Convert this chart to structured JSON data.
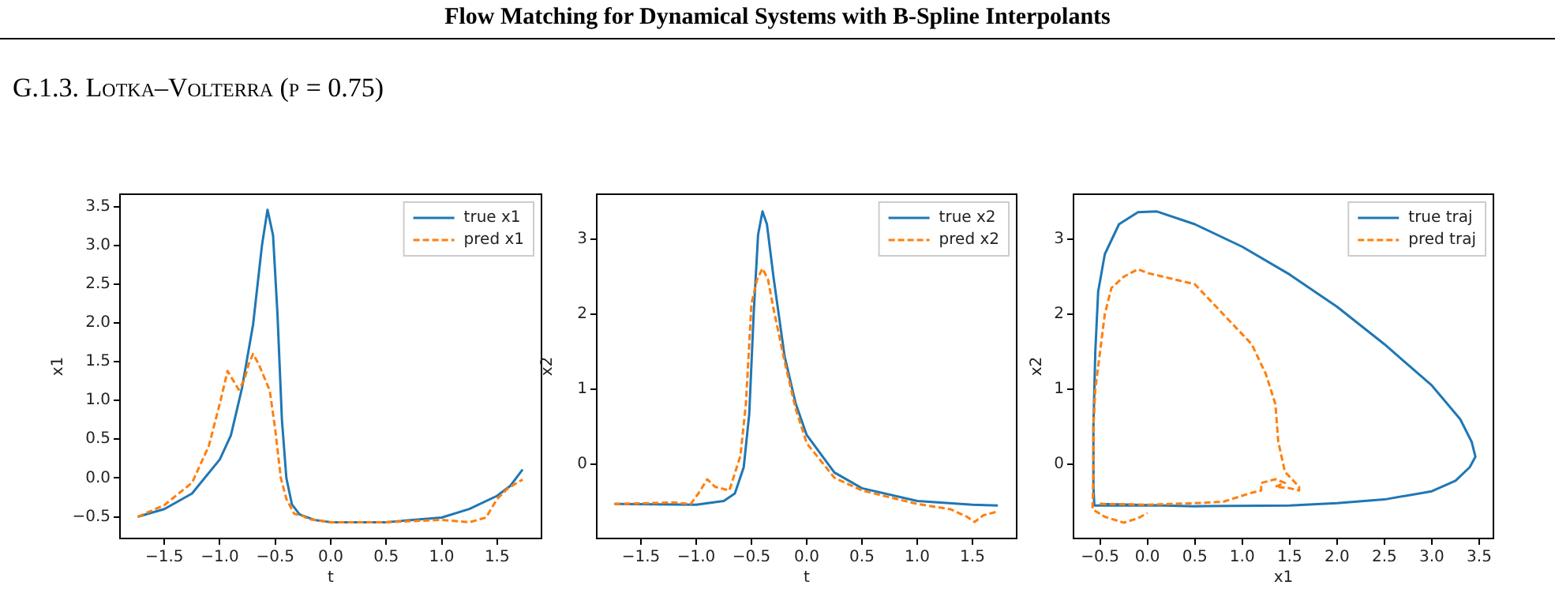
{
  "chart_data": [
    {
      "type": "line",
      "annotations": [
        "Flow Matching for Dynamical Systems with B-Spline Interpolants",
        "G.1.3. Lotka–Volterra (p = 0.75)"
      ],
      "xlabel": "t",
      "ylabel": "x1",
      "legend": "top right",
      "grid": false,
      "marker": "none",
      "xlim": [
        -1.9,
        1.9
      ],
      "ylim": [
        -0.78,
        3.66
      ],
      "xticks": [
        {
          "value": -1.5,
          "label": "−1.5"
        },
        {
          "value": -1.0,
          "label": "−1.0"
        },
        {
          "value": -0.5,
          "label": "−0.5"
        },
        {
          "value": 0,
          "label": "0.0"
        },
        {
          "value": 0.5,
          "label": "0.5"
        },
        {
          "value": 1.0,
          "label": "1.0"
        },
        {
          "value": 1.5,
          "label": "1.5"
        }
      ],
      "yticks": [
        {
          "value": -0.5,
          "label": "−0.5"
        },
        {
          "value": 0,
          "label": "0.0"
        },
        {
          "value": 0.5,
          "label": "0.5"
        },
        {
          "value": 1.0,
          "label": "1.0"
        },
        {
          "value": 1.5,
          "label": "1.5"
        },
        {
          "value": 2.0,
          "label": "2.0"
        },
        {
          "value": 2.5,
          "label": "2.5"
        },
        {
          "value": 3.0,
          "label": "3.0"
        },
        {
          "value": 3.5,
          "label": "3.5"
        }
      ],
      "series": [
        {
          "name": "true x1",
          "color": "#1f77b4",
          "line_style": "solid",
          "x": [
            -1.74,
            -1.5,
            -1.25,
            -1.0,
            -0.9,
            -0.8,
            -0.7,
            -0.62,
            -0.57,
            -0.52,
            -0.48,
            -0.44,
            -0.4,
            -0.35,
            -0.28,
            -0.15,
            0.0,
            0.5,
            1.0,
            1.25,
            1.5,
            1.62,
            1.73
          ],
          "values": [
            -0.5,
            -0.4,
            -0.2,
            0.24,
            0.55,
            1.16,
            1.98,
            3.0,
            3.46,
            3.13,
            2.11,
            0.75,
            0.0,
            -0.34,
            -0.47,
            -0.54,
            -0.57,
            -0.57,
            -0.51,
            -0.4,
            -0.23,
            -0.1,
            0.11
          ]
        },
        {
          "name": "pred x1",
          "color": "#ff7f0e",
          "line_style": "dashed",
          "x": [
            -1.74,
            -1.5,
            -1.25,
            -1.1,
            -1.0,
            -0.93,
            -0.88,
            -0.83,
            -0.78,
            -0.74,
            -0.7,
            -0.65,
            -0.6,
            -0.55,
            -0.5,
            -0.45,
            -0.4,
            -0.33,
            -0.25,
            -0.2,
            0.0,
            0.5,
            1.0,
            1.25,
            1.4,
            1.5,
            1.6,
            1.73
          ],
          "values": [
            -0.5,
            -0.35,
            -0.06,
            0.41,
            0.96,
            1.38,
            1.26,
            1.14,
            1.26,
            1.47,
            1.6,
            1.47,
            1.3,
            1.13,
            0.62,
            0.0,
            -0.27,
            -0.46,
            -0.49,
            -0.53,
            -0.57,
            -0.57,
            -0.54,
            -0.57,
            -0.51,
            -0.27,
            -0.13,
            -0.02
          ]
        }
      ]
    },
    {
      "type": "line",
      "xlabel": "t",
      "ylabel": "x2",
      "legend": "top right",
      "grid": false,
      "marker": "none",
      "xlim": [
        -1.9,
        1.9
      ],
      "ylim": [
        -0.99,
        3.6
      ],
      "xticks": [
        {
          "value": -1.5,
          "label": "−1.5"
        },
        {
          "value": -1.0,
          "label": "−1.0"
        },
        {
          "value": -0.5,
          "label": "−0.5"
        },
        {
          "value": 0,
          "label": "0.0"
        },
        {
          "value": 0.5,
          "label": "0.5"
        },
        {
          "value": 1.0,
          "label": "1.0"
        },
        {
          "value": 1.5,
          "label": "1.5"
        }
      ],
      "yticks": [
        0,
        1,
        2,
        3
      ],
      "series": [
        {
          "name": "true x2",
          "color": "#1f77b4",
          "line_style": "solid",
          "x": [
            -1.74,
            -1.0,
            -0.75,
            -0.65,
            -0.57,
            -0.52,
            -0.48,
            -0.44,
            -0.4,
            -0.36,
            -0.3,
            -0.2,
            -0.1,
            0.0,
            0.25,
            0.5,
            1.0,
            1.5,
            1.73
          ],
          "values": [
            -0.53,
            -0.54,
            -0.49,
            -0.39,
            -0.04,
            0.67,
            2.0,
            3.06,
            3.37,
            3.2,
            2.49,
            1.44,
            0.81,
            0.39,
            -0.11,
            -0.32,
            -0.49,
            -0.54,
            -0.55
          ]
        },
        {
          "name": "pred x2",
          "color": "#ff7f0e",
          "line_style": "dashed",
          "x": [
            -1.74,
            -1.2,
            -1.05,
            -0.98,
            -0.9,
            -0.83,
            -0.7,
            -0.6,
            -0.55,
            -0.5,
            -0.45,
            -0.4,
            -0.35,
            -0.3,
            -0.2,
            -0.1,
            0.0,
            0.25,
            0.5,
            1.0,
            1.3,
            1.45,
            1.52,
            1.6,
            1.73
          ],
          "values": [
            -0.53,
            -0.51,
            -0.53,
            -0.39,
            -0.2,
            -0.3,
            -0.35,
            0.11,
            0.81,
            2.14,
            2.46,
            2.61,
            2.46,
            2.07,
            1.37,
            0.74,
            0.28,
            -0.18,
            -0.35,
            -0.53,
            -0.6,
            -0.7,
            -0.77,
            -0.68,
            -0.63
          ]
        }
      ]
    },
    {
      "type": "line",
      "xlabel": "x1",
      "ylabel": "x2",
      "legend": "top right",
      "grid": false,
      "marker": "none",
      "xlim": [
        -0.78,
        3.65
      ],
      "ylim": [
        -0.99,
        3.6
      ],
      "xticks": [
        {
          "value": -0.5,
          "label": "−0.5"
        },
        {
          "value": 0,
          "label": "0.0"
        },
        {
          "value": 0.5,
          "label": "0.5"
        },
        {
          "value": 1.0,
          "label": "1.0"
        },
        {
          "value": 1.5,
          "label": "1.5"
        },
        {
          "value": 2.0,
          "label": "2.0"
        },
        {
          "value": 2.5,
          "label": "2.5"
        },
        {
          "value": 3.0,
          "label": "3.0"
        },
        {
          "value": 3.5,
          "label": "3.5"
        }
      ],
      "yticks": [
        0,
        1,
        2,
        3
      ],
      "series": [
        {
          "name": "true traj",
          "color": "#1f77b4",
          "line_style": "solid",
          "x": [
            -0.5,
            0.5,
            1.5,
            2.0,
            2.5,
            3.0,
            3.25,
            3.4,
            3.46,
            3.42,
            3.3,
            3.0,
            2.5,
            2.0,
            1.5,
            1.0,
            0.5,
            0.1,
            -0.1,
            -0.3,
            -0.45,
            -0.52,
            -0.55,
            -0.57,
            -0.57,
            -0.56,
            0.11
          ],
          "values": [
            -0.53,
            -0.56,
            -0.55,
            -0.52,
            -0.47,
            -0.36,
            -0.22,
            -0.04,
            0.1,
            0.3,
            0.6,
            1.05,
            1.6,
            2.1,
            2.53,
            2.9,
            3.2,
            3.37,
            3.36,
            3.2,
            2.8,
            2.3,
            1.5,
            0.5,
            -0.3,
            -0.55,
            -0.55
          ]
        },
        {
          "name": "pred traj",
          "color": "#ff7f0e",
          "line_style": "dashed",
          "x": [
            -0.5,
            0.0,
            0.5,
            0.8,
            1.1,
            1.2,
            1.2,
            1.35,
            1.45,
            1.35,
            1.5,
            1.6,
            1.6,
            1.45,
            1.38,
            1.35,
            1.25,
            1.1,
            0.8,
            0.5,
            0.0,
            -0.1,
            -0.25,
            -0.38,
            -0.45,
            -0.5,
            -0.55,
            -0.57,
            -0.57,
            -0.58,
            -0.45,
            -0.25,
            -0.1,
            0.0
          ],
          "values": [
            -0.53,
            -0.54,
            -0.52,
            -0.5,
            -0.38,
            -0.35,
            -0.25,
            -0.2,
            -0.25,
            -0.3,
            -0.32,
            -0.35,
            -0.3,
            -0.1,
            0.3,
            0.8,
            1.2,
            1.6,
            2.0,
            2.4,
            2.55,
            2.6,
            2.5,
            2.35,
            2.0,
            1.5,
            1.0,
            0.5,
            -0.2,
            -0.6,
            -0.7,
            -0.78,
            -0.72,
            -0.65
          ]
        }
      ]
    }
  ]
}
